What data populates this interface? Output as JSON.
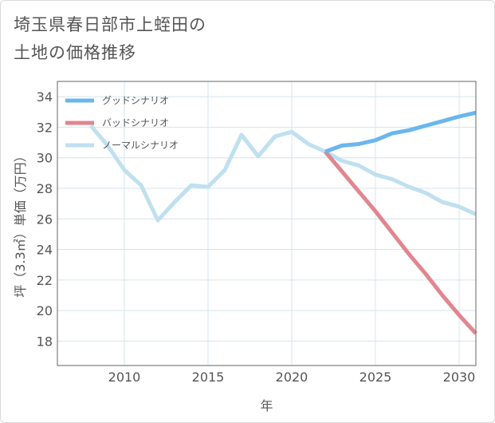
{
  "header": {
    "title_line1": "埼玉県春日部市上蛭田の",
    "title_line2": "土地の価格推移"
  },
  "chart_data": {
    "type": "line",
    "xlabel": "年",
    "ylabel": "坪（3.3㎡）単価（万円）",
    "xlim": [
      2006,
      2031
    ],
    "ylim": [
      16.4,
      35
    ],
    "xticks": [
      2010,
      2015,
      2020,
      2025,
      2030
    ],
    "yticks": [
      18,
      20,
      22,
      24,
      26,
      28,
      30,
      32,
      34
    ],
    "grid": true,
    "legend_position": "top-left",
    "series": [
      {
        "name": "グッドシナリオ",
        "color": "#6bb6ec",
        "x": [
          2022,
          2023,
          2024,
          2025,
          2026,
          2027,
          2028,
          2029,
          2030,
          2031
        ],
        "y": [
          30.4,
          30.8,
          30.9,
          31.15,
          31.6,
          31.8,
          32.1,
          32.4,
          32.7,
          32.95
        ]
      },
      {
        "name": "バッドシナリオ",
        "color": "#e0868f",
        "x": [
          2022,
          2023,
          2024,
          2025,
          2026,
          2027,
          2028,
          2029,
          2030,
          2031
        ],
        "y": [
          30.4,
          29.1,
          27.8,
          26.5,
          25.1,
          23.7,
          22.4,
          21.0,
          19.7,
          18.5
        ]
      },
      {
        "name": "ノーマルシナリオ",
        "color": "#bfe0ef",
        "x": [
          2008,
          2009,
          2010,
          2011,
          2012,
          2013,
          2014,
          2015,
          2016,
          2017,
          2018,
          2019,
          2020,
          2021,
          2022,
          2023,
          2024,
          2025,
          2026,
          2027,
          2028,
          2029,
          2030,
          2031
        ],
        "y": [
          32.1,
          30.8,
          29.2,
          28.2,
          25.9,
          27.1,
          28.2,
          28.1,
          29.2,
          31.5,
          30.1,
          31.4,
          31.7,
          30.9,
          30.4,
          29.8,
          29.5,
          28.9,
          28.6,
          28.1,
          27.7,
          27.1,
          26.8,
          26.3
        ]
      }
    ]
  }
}
